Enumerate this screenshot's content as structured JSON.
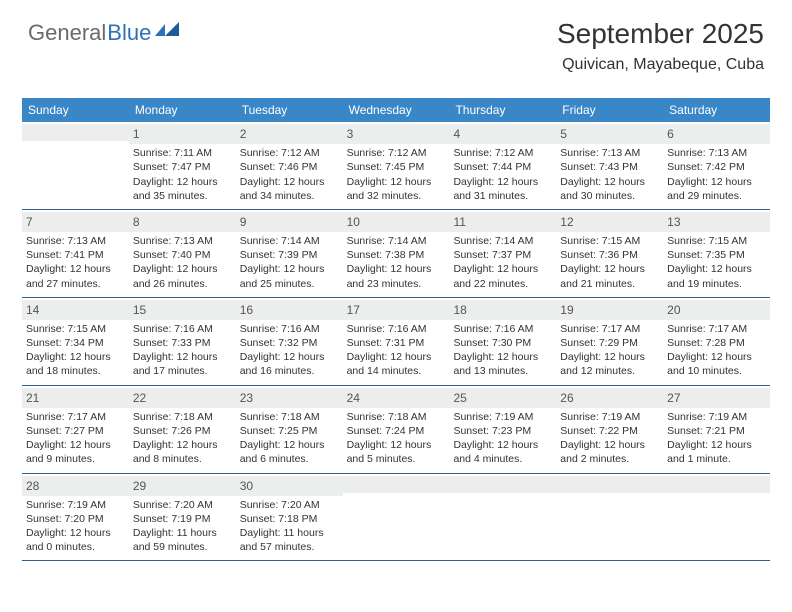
{
  "logo": {
    "part1": "General",
    "part2": "Blue"
  },
  "colors": {
    "header_bg": "#3a87c8",
    "header_text": "#ffffff",
    "daynum_bg": "#eceded",
    "rule": "#2d5f8f",
    "logo_gray": "#6a6a6a",
    "logo_blue": "#2d72b8",
    "text": "#333333"
  },
  "title": "September 2025",
  "location": "Quivican, Mayabeque, Cuba",
  "dow": [
    "Sunday",
    "Monday",
    "Tuesday",
    "Wednesday",
    "Thursday",
    "Friday",
    "Saturday"
  ],
  "weeks": [
    [
      {
        "num": "",
        "lines": []
      },
      {
        "num": "1",
        "lines": [
          "Sunrise: 7:11 AM",
          "Sunset: 7:47 PM",
          "Daylight: 12 hours and 35 minutes."
        ]
      },
      {
        "num": "2",
        "lines": [
          "Sunrise: 7:12 AM",
          "Sunset: 7:46 PM",
          "Daylight: 12 hours and 34 minutes."
        ]
      },
      {
        "num": "3",
        "lines": [
          "Sunrise: 7:12 AM",
          "Sunset: 7:45 PM",
          "Daylight: 12 hours and 32 minutes."
        ]
      },
      {
        "num": "4",
        "lines": [
          "Sunrise: 7:12 AM",
          "Sunset: 7:44 PM",
          "Daylight: 12 hours and 31 minutes."
        ]
      },
      {
        "num": "5",
        "lines": [
          "Sunrise: 7:13 AM",
          "Sunset: 7:43 PM",
          "Daylight: 12 hours and 30 minutes."
        ]
      },
      {
        "num": "6",
        "lines": [
          "Sunrise: 7:13 AM",
          "Sunset: 7:42 PM",
          "Daylight: 12 hours and 29 minutes."
        ]
      }
    ],
    [
      {
        "num": "7",
        "lines": [
          "Sunrise: 7:13 AM",
          "Sunset: 7:41 PM",
          "Daylight: 12 hours and 27 minutes."
        ]
      },
      {
        "num": "8",
        "lines": [
          "Sunrise: 7:13 AM",
          "Sunset: 7:40 PM",
          "Daylight: 12 hours and 26 minutes."
        ]
      },
      {
        "num": "9",
        "lines": [
          "Sunrise: 7:14 AM",
          "Sunset: 7:39 PM",
          "Daylight: 12 hours and 25 minutes."
        ]
      },
      {
        "num": "10",
        "lines": [
          "Sunrise: 7:14 AM",
          "Sunset: 7:38 PM",
          "Daylight: 12 hours and 23 minutes."
        ]
      },
      {
        "num": "11",
        "lines": [
          "Sunrise: 7:14 AM",
          "Sunset: 7:37 PM",
          "Daylight: 12 hours and 22 minutes."
        ]
      },
      {
        "num": "12",
        "lines": [
          "Sunrise: 7:15 AM",
          "Sunset: 7:36 PM",
          "Daylight: 12 hours and 21 minutes."
        ]
      },
      {
        "num": "13",
        "lines": [
          "Sunrise: 7:15 AM",
          "Sunset: 7:35 PM",
          "Daylight: 12 hours and 19 minutes."
        ]
      }
    ],
    [
      {
        "num": "14",
        "lines": [
          "Sunrise: 7:15 AM",
          "Sunset: 7:34 PM",
          "Daylight: 12 hours and 18 minutes."
        ]
      },
      {
        "num": "15",
        "lines": [
          "Sunrise: 7:16 AM",
          "Sunset: 7:33 PM",
          "Daylight: 12 hours and 17 minutes."
        ]
      },
      {
        "num": "16",
        "lines": [
          "Sunrise: 7:16 AM",
          "Sunset: 7:32 PM",
          "Daylight: 12 hours and 16 minutes."
        ]
      },
      {
        "num": "17",
        "lines": [
          "Sunrise: 7:16 AM",
          "Sunset: 7:31 PM",
          "Daylight: 12 hours and 14 minutes."
        ]
      },
      {
        "num": "18",
        "lines": [
          "Sunrise: 7:16 AM",
          "Sunset: 7:30 PM",
          "Daylight: 12 hours and 13 minutes."
        ]
      },
      {
        "num": "19",
        "lines": [
          "Sunrise: 7:17 AM",
          "Sunset: 7:29 PM",
          "Daylight: 12 hours and 12 minutes."
        ]
      },
      {
        "num": "20",
        "lines": [
          "Sunrise: 7:17 AM",
          "Sunset: 7:28 PM",
          "Daylight: 12 hours and 10 minutes."
        ]
      }
    ],
    [
      {
        "num": "21",
        "lines": [
          "Sunrise: 7:17 AM",
          "Sunset: 7:27 PM",
          "Daylight: 12 hours and 9 minutes."
        ]
      },
      {
        "num": "22",
        "lines": [
          "Sunrise: 7:18 AM",
          "Sunset: 7:26 PM",
          "Daylight: 12 hours and 8 minutes."
        ]
      },
      {
        "num": "23",
        "lines": [
          "Sunrise: 7:18 AM",
          "Sunset: 7:25 PM",
          "Daylight: 12 hours and 6 minutes."
        ]
      },
      {
        "num": "24",
        "lines": [
          "Sunrise: 7:18 AM",
          "Sunset: 7:24 PM",
          "Daylight: 12 hours and 5 minutes."
        ]
      },
      {
        "num": "25",
        "lines": [
          "Sunrise: 7:19 AM",
          "Sunset: 7:23 PM",
          "Daylight: 12 hours and 4 minutes."
        ]
      },
      {
        "num": "26",
        "lines": [
          "Sunrise: 7:19 AM",
          "Sunset: 7:22 PM",
          "Daylight: 12 hours and 2 minutes."
        ]
      },
      {
        "num": "27",
        "lines": [
          "Sunrise: 7:19 AM",
          "Sunset: 7:21 PM",
          "Daylight: 12 hours and 1 minute."
        ]
      }
    ],
    [
      {
        "num": "28",
        "lines": [
          "Sunrise: 7:19 AM",
          "Sunset: 7:20 PM",
          "Daylight: 12 hours and 0 minutes."
        ]
      },
      {
        "num": "29",
        "lines": [
          "Sunrise: 7:20 AM",
          "Sunset: 7:19 PM",
          "Daylight: 11 hours and 59 minutes."
        ]
      },
      {
        "num": "30",
        "lines": [
          "Sunrise: 7:20 AM",
          "Sunset: 7:18 PM",
          "Daylight: 11 hours and 57 minutes."
        ]
      },
      {
        "num": "",
        "lines": []
      },
      {
        "num": "",
        "lines": []
      },
      {
        "num": "",
        "lines": []
      },
      {
        "num": "",
        "lines": []
      }
    ]
  ]
}
